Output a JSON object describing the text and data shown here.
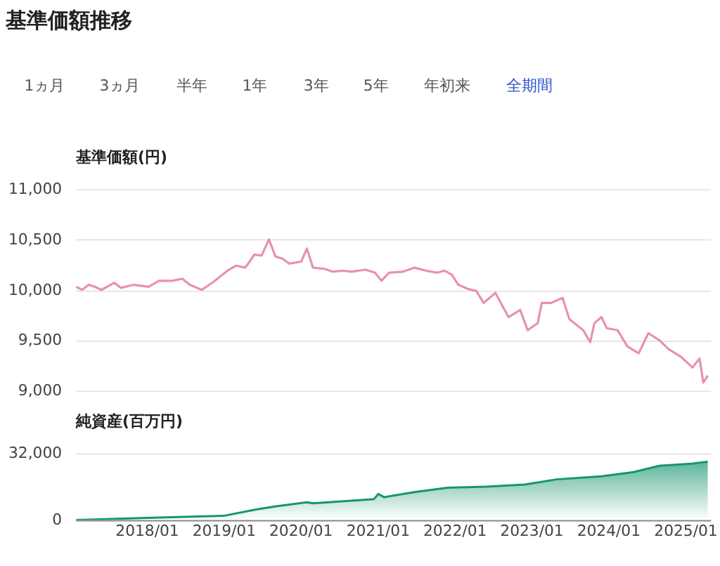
{
  "chart_data": [
    {
      "type": "line",
      "title": "基準価額推移",
      "ylabel": "基準価額(円)",
      "annotations": [
        "1ヵ月",
        "3ヵ月",
        "半年",
        "1年",
        "3年",
        "5年",
        "年初来",
        "全期間"
      ],
      "x": [
        "2017-02-01",
        "2017-03-01",
        "2017-04-01",
        "2017-05-01",
        "2017-06-01",
        "2017-08-01",
        "2017-09-01",
        "2017-11-01",
        "2018-01-10",
        "2018-03-01",
        "2018-05-01",
        "2018-06-20",
        "2018-07-25",
        "2018-09-20",
        "2018-11-15",
        "2019-01-20",
        "2019-03-01",
        "2019-04-15",
        "2019-05-28",
        "2019-07-01",
        "2019-08-05",
        "2019-09-05",
        "2019-10-08",
        "2019-11-10",
        "2020-01-05",
        "2020-02-01",
        "2020-03-01",
        "2020-04-20",
        "2020-06-05",
        "2020-07-20",
        "2020-09-01",
        "2020-11-05",
        "2020-12-20",
        "2021-01-20",
        "2021-02-25",
        "2021-05-01",
        "2021-06-25",
        "2021-08-20",
        "2021-10-12",
        "2021-11-15",
        "2021-12-20",
        "2022-01-20",
        "2022-03-05",
        "2022-04-15",
        "2022-05-20",
        "2022-07-15",
        "2022-08-15",
        "2022-09-15",
        "2022-11-10",
        "2022-12-15",
        "2023-02-01",
        "2023-02-20",
        "2023-04-05",
        "2023-05-30",
        "2023-07-01",
        "2023-09-05",
        "2023-10-08",
        "2023-10-28",
        "2023-12-01",
        "2023-12-25",
        "2024-02-15",
        "2024-04-01",
        "2024-05-25",
        "2024-07-10",
        "2024-09-01",
        "2024-10-15",
        "2024-12-10",
        "2025-02-05",
        "2025-03-10",
        "2025-03-28",
        "2025-04-18"
      ],
      "series": [
        {
          "color": "#e98fb6",
          "values": [
            10030,
            10000,
            10050,
            10030,
            10000,
            10070,
            10020,
            10050,
            10030,
            10090,
            10090,
            10110,
            10050,
            10000,
            10080,
            10190,
            10240,
            10220,
            10350,
            10340,
            10500,
            10330,
            10310,
            10260,
            10280,
            10410,
            10220,
            10210,
            10180,
            10190,
            10180,
            10200,
            10170,
            10090,
            10170,
            10180,
            10220,
            10190,
            10170,
            10190,
            10150,
            10050,
            10010,
            9990,
            9870,
            9970,
            9850,
            9730,
            9800,
            9600,
            9670,
            9870,
            9870,
            9920,
            9710,
            9600,
            9480,
            9670,
            9730,
            9620,
            9600,
            9440,
            9370,
            9570,
            9500,
            9410,
            9340,
            9230,
            9320,
            9080,
            9150
          ]
        }
      ],
      "xlim": [
        "2017-01-27",
        "2025-04-30"
      ],
      "ylim": [
        9000,
        11000
      ],
      "yticks": [
        {
          "value": 9000,
          "label": "9,000"
        },
        {
          "value": 9500,
          "label": "9,500"
        },
        {
          "value": 10000,
          "label": "10,000"
        },
        {
          "value": 10500,
          "label": "10,500"
        },
        {
          "value": 11000,
          "label": "11,000"
        }
      ],
      "grid": "y",
      "tick_labels": "y"
    },
    {
      "type": "area",
      "ylabel": "純資産(百万円)",
      "x": [
        "2017-02-01",
        "2018-01-01",
        "2019-01-01",
        "2019-06-01",
        "2019-09-01",
        "2020-02-01",
        "2020-03-01",
        "2020-12-15",
        "2021-01-05",
        "2021-02-01",
        "2021-07-01",
        "2021-12-01",
        "2022-06-01",
        "2022-12-01",
        "2023-05-01",
        "2023-12-01",
        "2024-05-01",
        "2024-09-01",
        "2025-02-01",
        "2025-04-18"
      ],
      "series": [
        {
          "color": "#16956f",
          "values": [
            0,
            1000,
            2000,
            5000,
            6500,
            8500,
            8000,
            10000,
            12500,
            11000,
            13500,
            15500,
            16000,
            17000,
            19500,
            21000,
            23000,
            26000,
            27000,
            28000
          ]
        }
      ],
      "xlim": [
        "2017-01-27",
        "2025-04-30"
      ],
      "xticks": [
        {
          "value": "2018-01-01",
          "label": "2018/01"
        },
        {
          "value": "2019-01-01",
          "label": "2019/01"
        },
        {
          "value": "2020-01-01",
          "label": "2020/01"
        },
        {
          "value": "2021-01-01",
          "label": "2021/01"
        },
        {
          "value": "2022-01-01",
          "label": "2022/01"
        },
        {
          "value": "2023-01-01",
          "label": "2023/01"
        },
        {
          "value": "2024-01-01",
          "label": "2024/01"
        },
        {
          "value": "2025-01-01",
          "label": "2025/01"
        }
      ],
      "ylim": [
        0,
        32000
      ],
      "yticks": [
        0,
        {
          "value": 32000,
          "label": "32,000"
        }
      ],
      "grid": "y"
    }
  ]
}
